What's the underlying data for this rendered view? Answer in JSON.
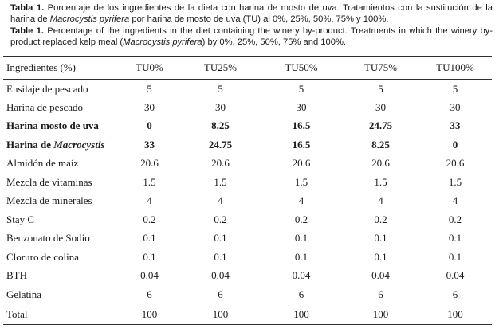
{
  "colors": {
    "text": "#1a1a1a",
    "rule": "#2e2e2e",
    "background": "#ffffff"
  },
  "caption": {
    "es": {
      "label": "Tabla 1.",
      "text1": " Porcentaje de los ingredientes de la dieta con harina de mosto de uva. Tratamientos con la sustitución de la harina de ",
      "italic": "Macrocystis pyrifera",
      "text2": " por harina de mosto de uva (TU) al 0%, 25%, 50%, 75% y 100%."
    },
    "en": {
      "label": "Table 1.",
      "text1": " Percentage of the ingredients in the diet containing the winery by-product. Treatments in which the winery by-product replaced kelp meal (",
      "italic": "Macrocystis pyrifera",
      "text2": ") by 0%, 25%, 50%, 75% and 100%."
    }
  },
  "table": {
    "headers": [
      "Ingredientes (%)",
      "TU0%",
      "TU25%",
      "TU50%",
      "TU75%",
      "TU100%"
    ],
    "rows": [
      {
        "label_prefix": "Ensilaje de pescado",
        "label_italic": "",
        "bold": false,
        "values": [
          "5",
          "5",
          "5",
          "5",
          "5"
        ]
      },
      {
        "label_prefix": "Harina de pescado",
        "label_italic": "",
        "bold": false,
        "values": [
          "30",
          "30",
          "30",
          "30",
          "30"
        ]
      },
      {
        "label_prefix": "Harina mosto de uva",
        "label_italic": "",
        "bold": true,
        "values": [
          "0",
          "8.25",
          "16.5",
          "24.75",
          "33"
        ]
      },
      {
        "label_prefix": "Harina de ",
        "label_italic": "Macrocystis",
        "bold": true,
        "values": [
          "33",
          "24.75",
          "16.5",
          "8.25",
          "0"
        ]
      },
      {
        "label_prefix": "Almidón de maíz",
        "label_italic": "",
        "bold": false,
        "values": [
          "20.6",
          "20.6",
          "20.6",
          "20.6",
          "20.6"
        ]
      },
      {
        "label_prefix": "Mezcla de vitaminas",
        "label_italic": "",
        "bold": false,
        "values": [
          "1.5",
          "1.5",
          "1.5",
          "1.5",
          "1.5"
        ]
      },
      {
        "label_prefix": "Mezcla de minerales",
        "label_italic": "",
        "bold": false,
        "values": [
          "4",
          "4",
          "4",
          "4",
          "4"
        ]
      },
      {
        "label_prefix": "Stay C",
        "label_italic": "",
        "bold": false,
        "values": [
          "0.2",
          "0.2",
          "0.2",
          "0.2",
          "0.2"
        ]
      },
      {
        "label_prefix": "Benzonato de Sodio",
        "label_italic": "",
        "bold": false,
        "values": [
          "0.1",
          "0.1",
          "0.1",
          "0.1",
          "0.1"
        ]
      },
      {
        "label_prefix": "Cloruro de colina",
        "label_italic": "",
        "bold": false,
        "values": [
          "0.1",
          "0.1",
          "0.1",
          "0.1",
          "0.1"
        ]
      },
      {
        "label_prefix": "BTH",
        "label_italic": "",
        "bold": false,
        "values": [
          "0.04",
          "0.04",
          "0.04",
          "0.04",
          "0.04"
        ]
      },
      {
        "label_prefix": "Gelatina",
        "label_italic": "",
        "bold": false,
        "values": [
          "6",
          "6",
          "6",
          "6",
          "6"
        ]
      }
    ],
    "total": {
      "label": "Total",
      "values": [
        "100",
        "100",
        "100",
        "100",
        "100"
      ]
    }
  }
}
